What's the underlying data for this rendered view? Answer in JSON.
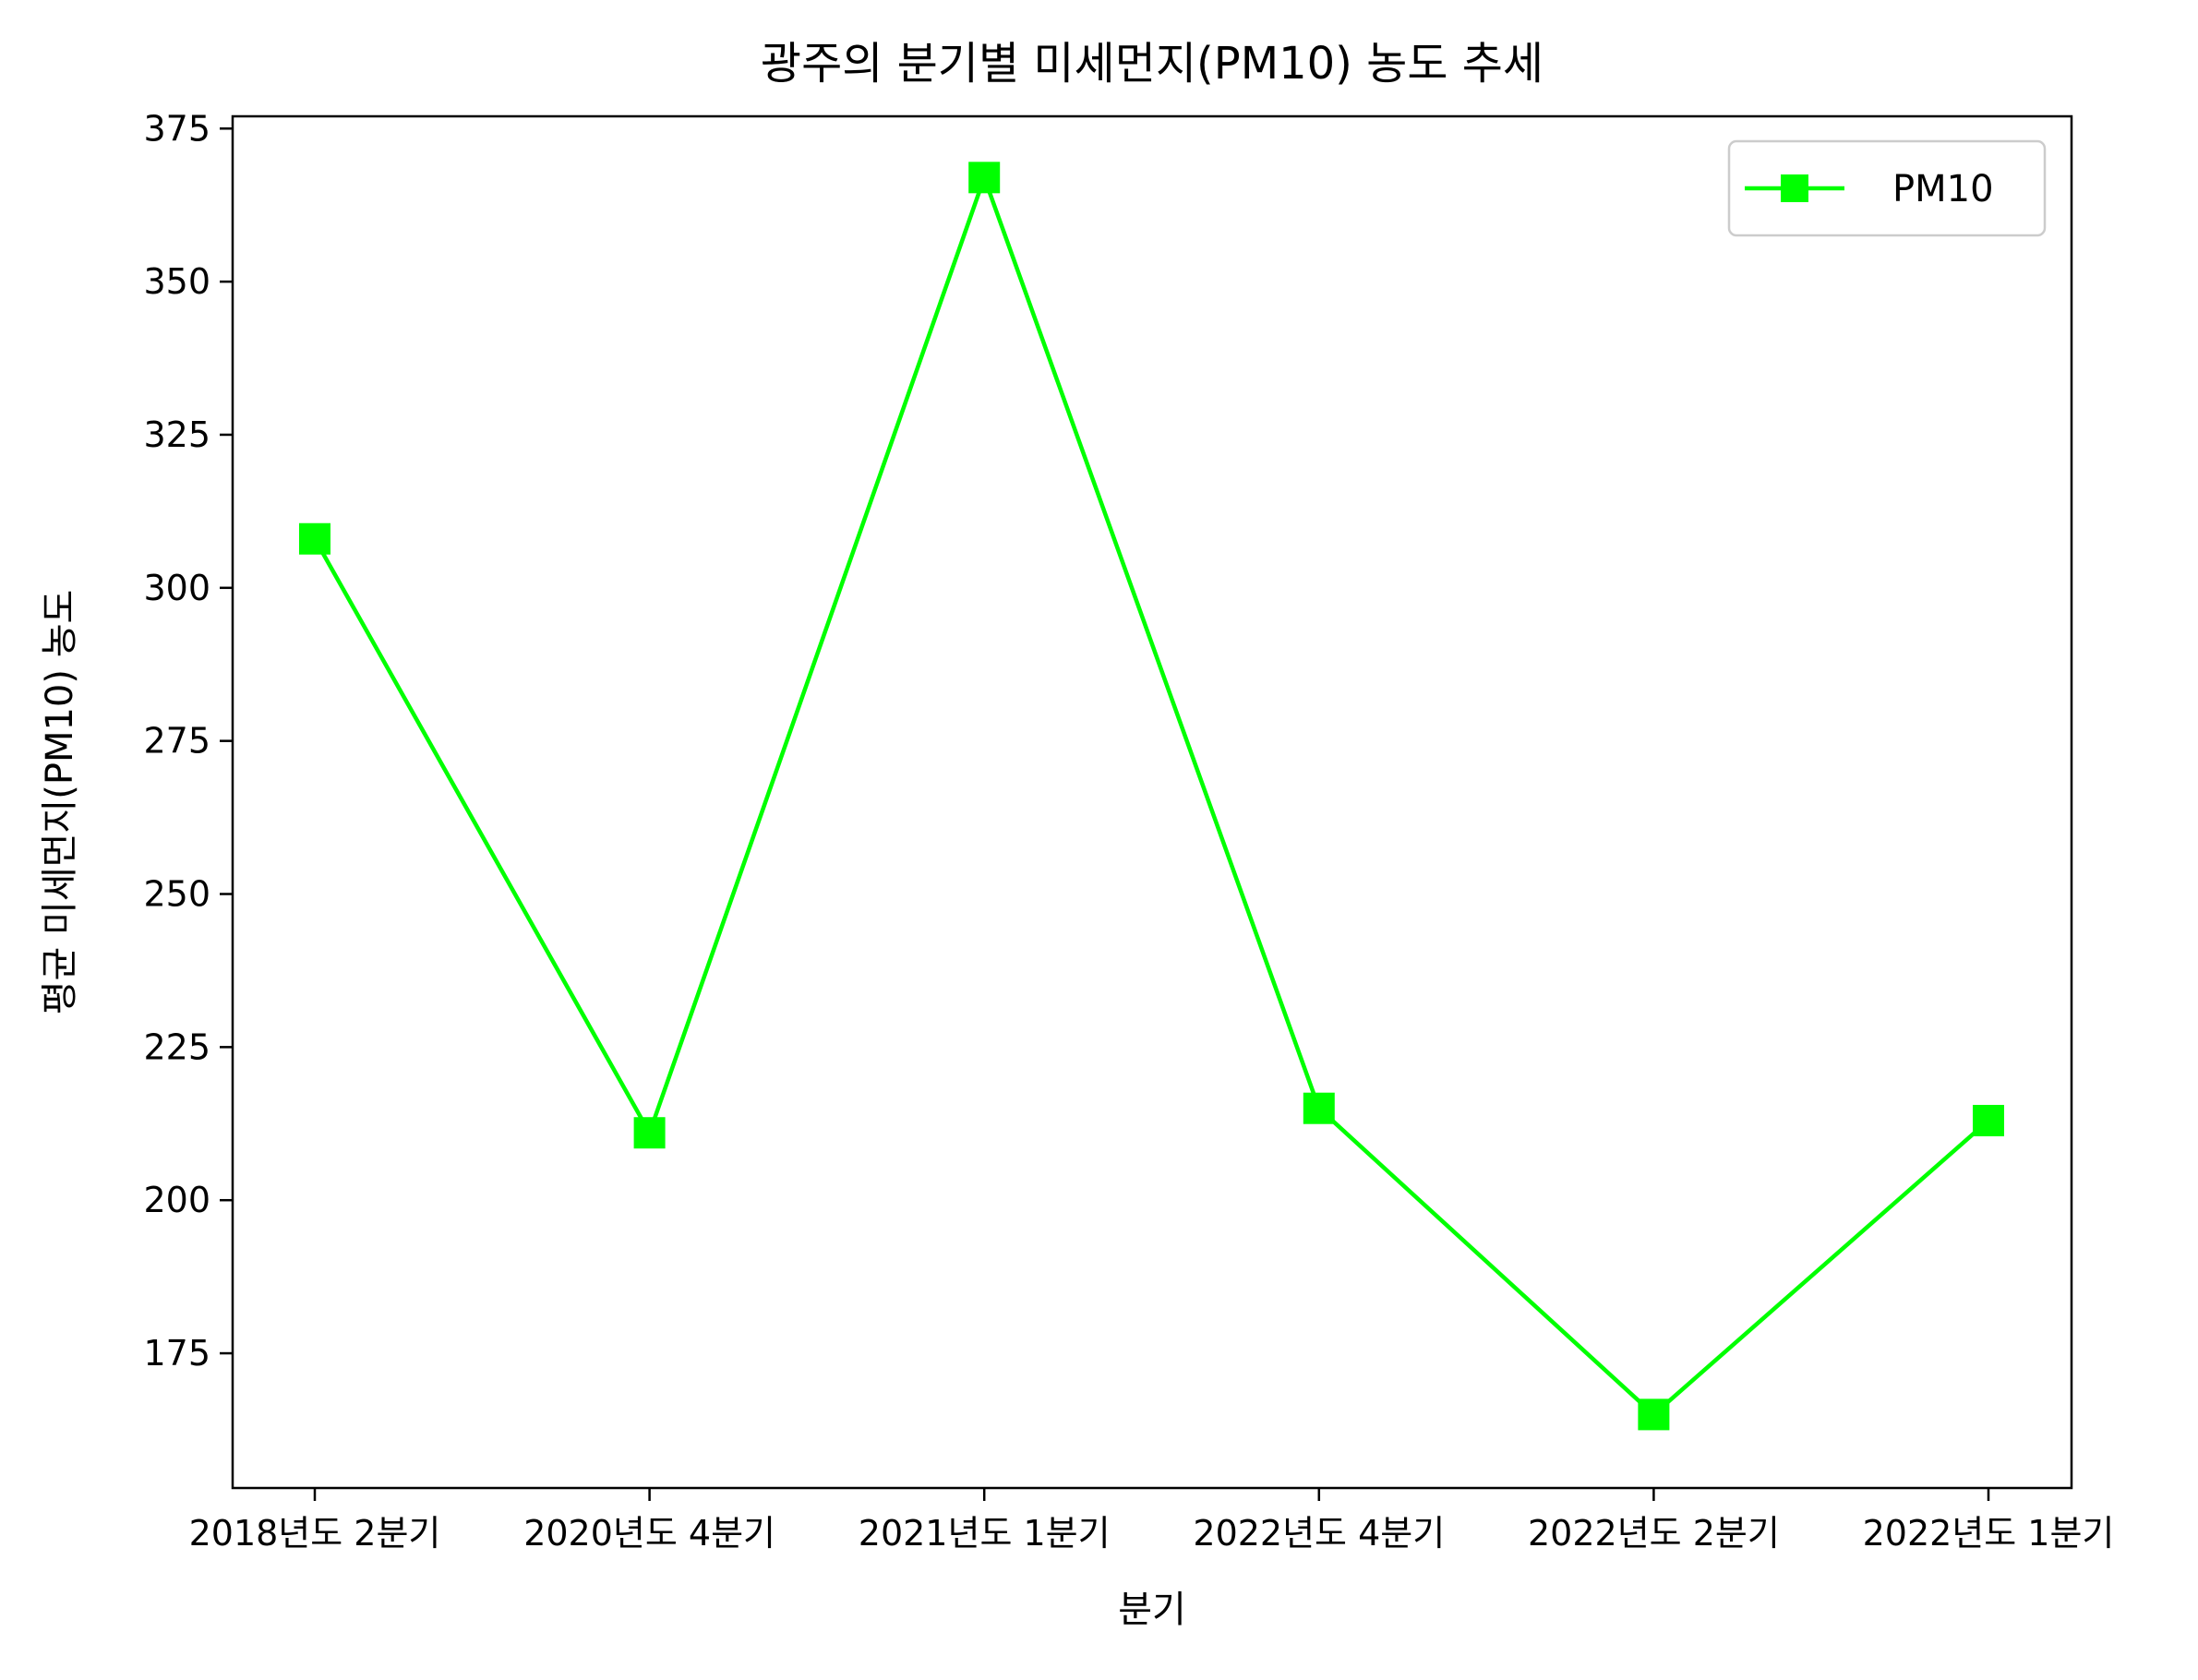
{
  "chart_data": {
    "type": "line",
    "title": "광주의 분기별 미세먼지(PM10) 농도 추세",
    "xlabel": "분기",
    "ylabel": "평균 미세먼지(PM10) 농도",
    "categories": [
      "2018년도 2분기",
      "2020년도 4분기",
      "2021년도 1분기",
      "2022년도 4분기",
      "2022년도 2분기",
      "2022년도 1분기"
    ],
    "series": [
      {
        "name": "PM10",
        "values": [
          308,
          211,
          367,
          215,
          165,
          213
        ],
        "color": "#00ff00",
        "marker": "square"
      }
    ],
    "ylim": [
      153,
      377
    ],
    "yticks": [
      175,
      200,
      225,
      250,
      275,
      300,
      325,
      350,
      375
    ],
    "grid": false,
    "legend": "top-right"
  }
}
